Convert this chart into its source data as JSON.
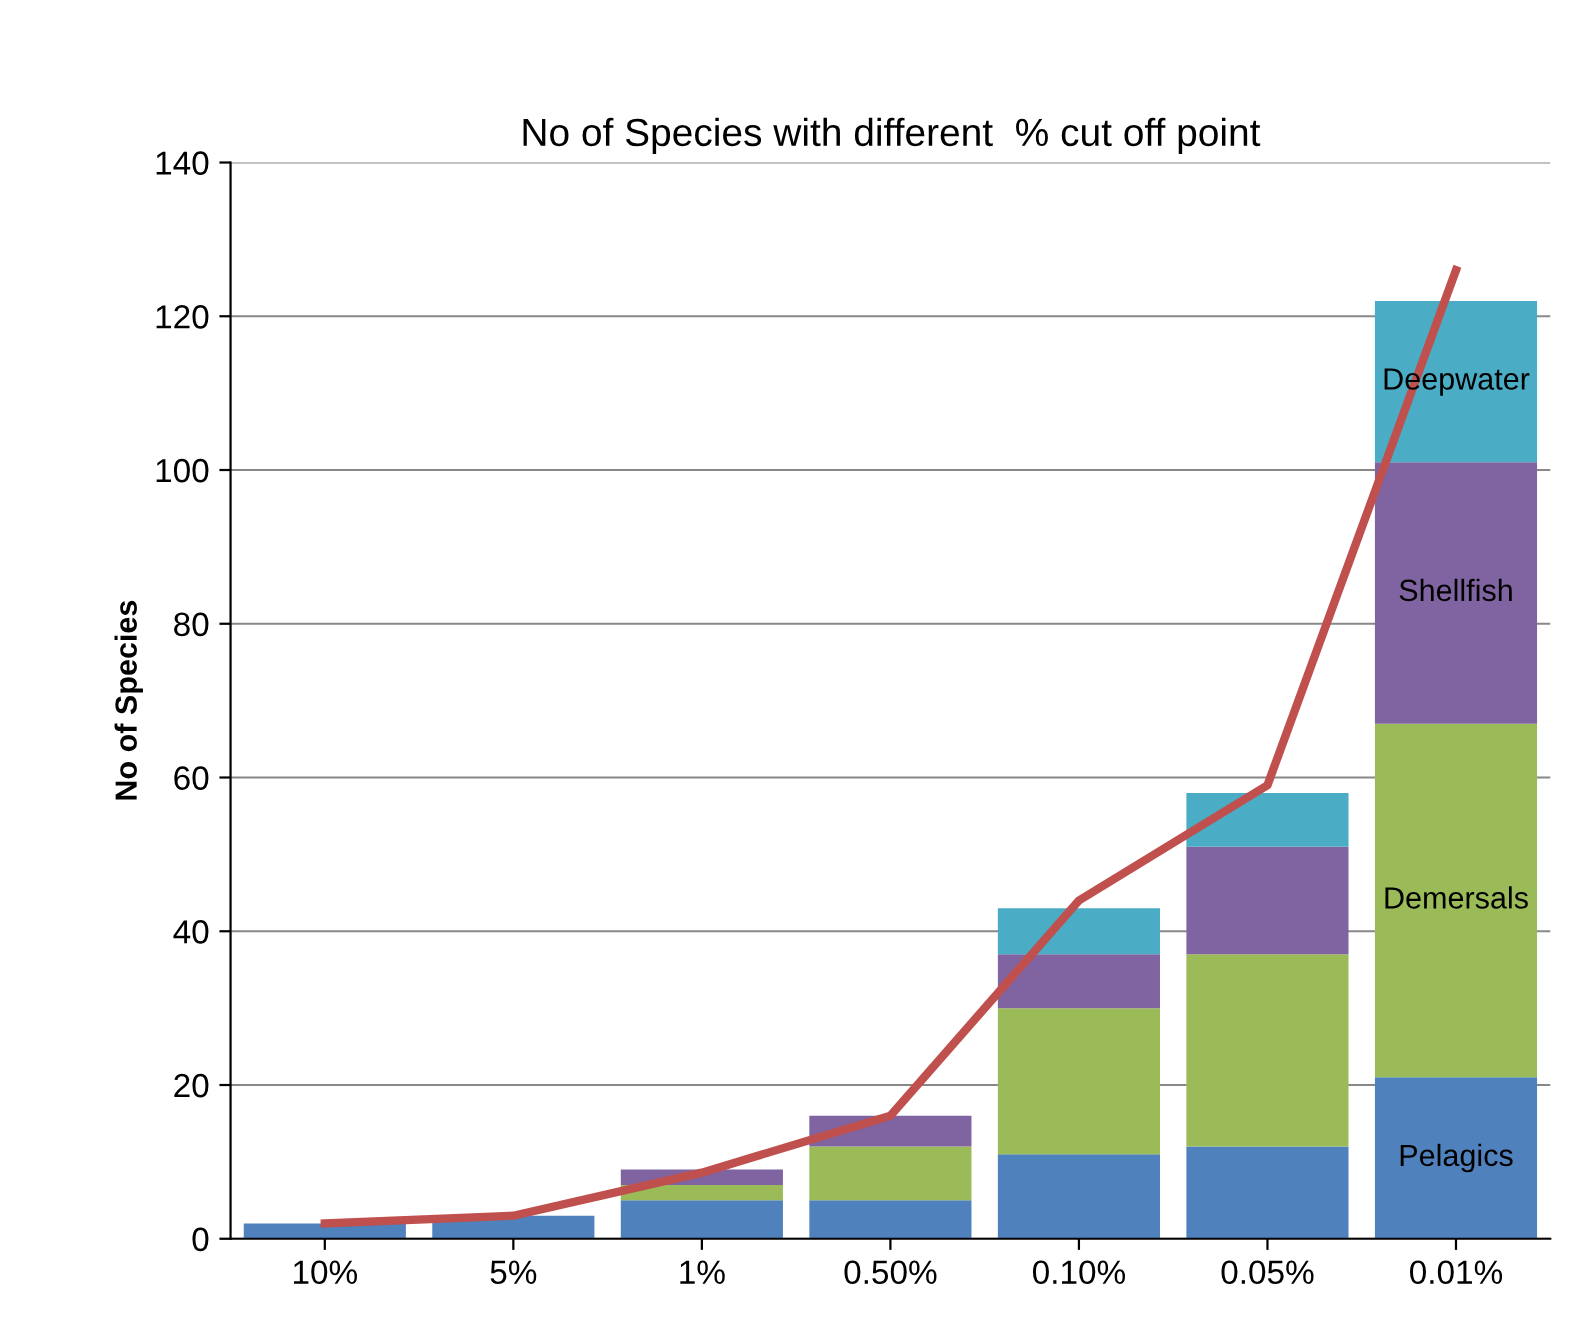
{
  "chart_data": {
    "type": "bar",
    "title": "No of Species with different  % cut off point",
    "ylabel": "No of Species",
    "categories": [
      "10%",
      "5%",
      "1%",
      "0.50%",
      "0.10%",
      "0.05%",
      "0.01%"
    ],
    "stacked": true,
    "series": [
      {
        "name": "Pelagics",
        "color": "#4f81bd",
        "values": [
          2,
          3,
          5,
          5,
          11,
          12,
          21
        ]
      },
      {
        "name": "Demersals",
        "color": "#9bbb59",
        "values": [
          0,
          0,
          2,
          7,
          19,
          25,
          46
        ]
      },
      {
        "name": "Shellfish",
        "color": "#8064a2",
        "values": [
          0,
          0,
          2,
          4,
          7,
          14,
          34
        ]
      },
      {
        "name": "Deepwater",
        "color": "#4bacc6",
        "values": [
          0,
          0,
          0,
          0,
          6,
          7,
          21
        ]
      },
      {
        "type": "line",
        "color": "#c0504d",
        "values": [
          2,
          3,
          8.6,
          16,
          44,
          59,
          126
        ]
      }
    ],
    "ylim": [
      0,
      140
    ],
    "yticks": [
      0,
      20,
      40,
      60,
      80,
      100,
      120,
      140
    ],
    "grid": "y",
    "legend": false
  }
}
